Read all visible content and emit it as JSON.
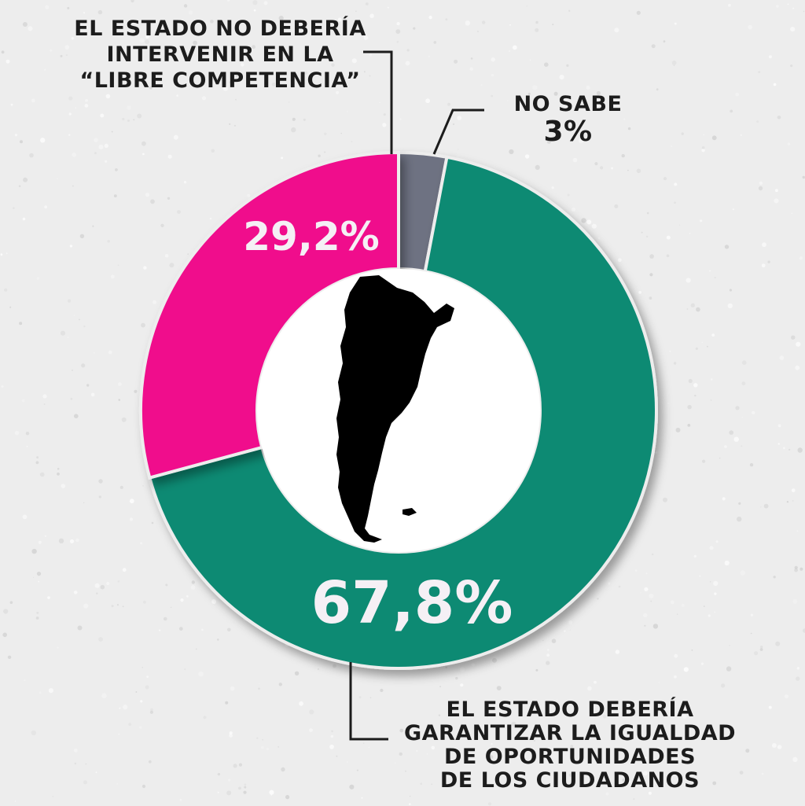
{
  "chart_data": {
    "type": "pie",
    "variant": "donut",
    "slices": [
      {
        "label": "No sabe",
        "value": 3,
        "display": "3%",
        "color": "#6e7282"
      },
      {
        "label": "El Estado debería garantizar la igualdad de oportunidades de los ciudadanos",
        "value": 67.8,
        "display": "67,8%",
        "color": "#0c8a73"
      },
      {
        "label": "El Estado no debería intervenir en la \"libre competencia\"",
        "value": 29.2,
        "display": "29,2%",
        "color": "#f00f8c"
      }
    ],
    "center_icon": "argentina-map-icon"
  },
  "labels": {
    "top_left": [
      "El Estado no debería",
      "intervenir en la",
      "“Libre competencia”"
    ],
    "no_sabe_title": "No sabe",
    "no_sabe_value": "3%",
    "bottom_right": [
      "El Estado debería",
      "garantizar la igualdad",
      "de oportunidades",
      "de los ciudadanos"
    ],
    "pink_value": "29,2%",
    "green_value": "67,8%"
  },
  "colors": {
    "background": "#ededed",
    "text_dark": "#1c1c1c",
    "value_light": "#f5f0f5"
  }
}
